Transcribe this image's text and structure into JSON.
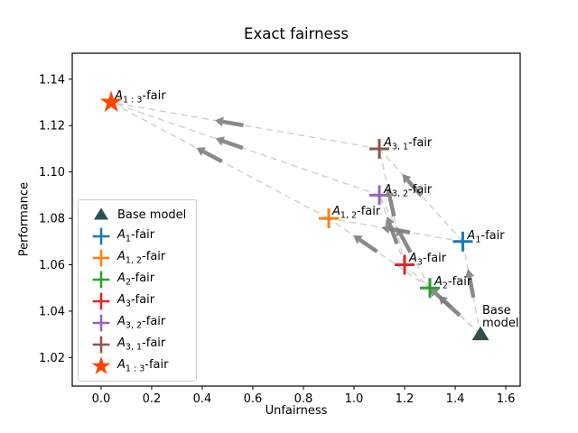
{
  "figure": {
    "title": "Exact fairness",
    "xlabel": "Unfairness",
    "ylabel": "Performance"
  },
  "chart_data": {
    "type": "scatter",
    "title": "Exact fairness",
    "xlabel": "Unfairness",
    "ylabel": "Performance",
    "xlim": [
      -0.114,
      1.657
    ],
    "ylim": [
      1.0077,
      1.1512
    ],
    "grid": false,
    "legend_position": "center left",
    "xticks": {
      "values": [
        0.0,
        0.2,
        0.4,
        0.6,
        0.8,
        1.0,
        1.2,
        1.4,
        1.6
      ],
      "labels": [
        "0.0",
        "0.2",
        "0.4",
        "0.6",
        "0.8",
        "1.0",
        "1.2",
        "1.4",
        "1.6"
      ]
    },
    "yticks": {
      "values": [
        1.02,
        1.04,
        1.06,
        1.08,
        1.1,
        1.12,
        1.14
      ],
      "labels": [
        "1.02",
        "1.04",
        "1.06",
        "1.08",
        "1.10",
        "1.12",
        "1.14"
      ]
    },
    "points": [
      {
        "id": "base",
        "x": 1.5,
        "y": 1.03,
        "marker": "triangle",
        "color": "#2f4f4f",
        "label_pre": "Base model",
        "label_sub": "",
        "label_post": "",
        "annotation_lines": [
          "Base",
          "model"
        ],
        "ann_dx": 2,
        "ann_dy": -33
      },
      {
        "id": "a1",
        "x": 1.43,
        "y": 1.07,
        "marker": "plus",
        "color": "#1f77b4",
        "label_pre": "A",
        "label_sub": "1",
        "label_post": "-fair",
        "ann_dx": 5,
        "ann_dy": -13
      },
      {
        "id": "a12",
        "x": 0.9,
        "y": 1.08,
        "marker": "plus",
        "color": "#ff7f0e",
        "label_pre": "A",
        "label_sub": "1, 2",
        "label_post": "-fair",
        "ann_dx": 4,
        "ann_dy": -14
      },
      {
        "id": "a2",
        "x": 1.3,
        "y": 1.05,
        "marker": "plus",
        "color": "#2ca02c",
        "label_pre": "A",
        "label_sub": "2",
        "label_post": "-fair",
        "ann_dx": 5,
        "ann_dy": -13
      },
      {
        "id": "a3",
        "x": 1.2,
        "y": 1.06,
        "marker": "plus",
        "color": "#d62728",
        "label_pre": "A",
        "label_sub": "3",
        "label_post": "-fair",
        "ann_dx": 5,
        "ann_dy": -14
      },
      {
        "id": "a32",
        "x": 1.1,
        "y": 1.09,
        "marker": "plus",
        "color": "#9467bd",
        "label_pre": "A",
        "label_sub": "3, 2",
        "label_post": "-fair",
        "ann_dx": 5,
        "ann_dy": -12
      },
      {
        "id": "a31",
        "x": 1.1,
        "y": 1.11,
        "marker": "plus",
        "color": "#8c564b",
        "label_pre": "A",
        "label_sub": "3, 1",
        "label_post": "-fair",
        "ann_dx": 5,
        "ann_dy": -13
      },
      {
        "id": "a13",
        "x": 0.04,
        "y": 1.13,
        "marker": "star",
        "color": "#ff4500",
        "label_pre": "A",
        "label_sub": "1 : 3",
        "label_post": "-fair",
        "ann_dx": 4,
        "ann_dy": -14
      }
    ],
    "edges": [
      {
        "from": "base",
        "to": "a1",
        "arrow_at": 0.55
      },
      {
        "from": "base",
        "to": "a2",
        "arrow_at": 0.62
      },
      {
        "from": "base",
        "to": "a3",
        "arrow_at": 0.53
      },
      {
        "from": "a1",
        "to": "a12",
        "arrow_at": 0.5
      },
      {
        "from": "a2",
        "to": "a12",
        "arrow_at": 0.64
      },
      {
        "from": "a1",
        "to": "a31",
        "arrow_at": 0.61
      },
      {
        "from": "a3",
        "to": "a31",
        "arrow_at": 0.54
      },
      {
        "from": "a2",
        "to": "a32",
        "arrow_at": 0.52
      },
      {
        "from": "a3",
        "to": "a32",
        "arrow_at": 0.5
      },
      {
        "from": "a12",
        "to": "a13",
        "arrow_at": 0.55
      },
      {
        "from": "a32",
        "to": "a13",
        "arrow_at": 0.56
      },
      {
        "from": "a31",
        "to": "a13",
        "arrow_at": 0.56
      }
    ],
    "edge_style": {
      "color": "#c9c9c9",
      "dash": "7 5",
      "width": 1.4
    },
    "arrow_style": {
      "color": "#7f7f7f",
      "length": 32,
      "shaft_width": 4.5,
      "head_len": 9,
      "head_width": 11
    },
    "legend_order": [
      "base",
      "a1",
      "a12",
      "a2",
      "a3",
      "a32",
      "a31",
      "a13"
    ]
  }
}
